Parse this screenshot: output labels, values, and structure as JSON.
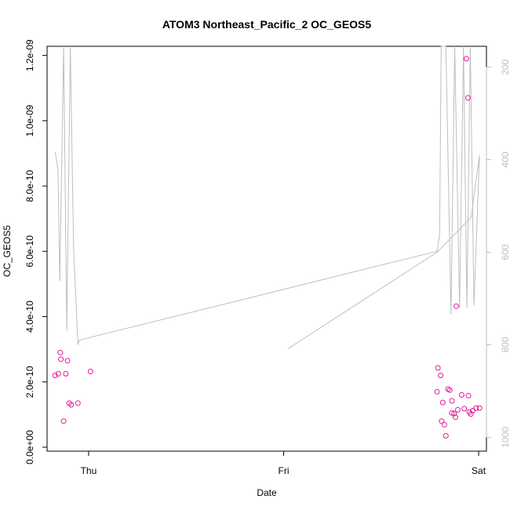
{
  "chart_data": {
    "type": "scatter",
    "title": "ATOM3 Northeast_Pacific_2 OC_GEOS5",
    "xlabel": "Date",
    "ylabel": "OC_GEOS5",
    "x_ticks": [
      {
        "value": 1.0,
        "label": "Thu"
      },
      {
        "value": 2.0,
        "label": "Fri"
      },
      {
        "value": 3.0,
        "label": "Sat"
      }
    ],
    "xlim": [
      0.787,
      3.04
    ],
    "ylim": [
      -1.2e-11,
      1.228e-09
    ],
    "y_ticks": [
      {
        "value": 0.0,
        "label": "0.0e+00"
      },
      {
        "value": 2e-10,
        "label": "2.0e-10"
      },
      {
        "value": 4e-10,
        "label": "4.0e-10"
      },
      {
        "value": 6e-10,
        "label": "6.0e-10"
      },
      {
        "value": 8e-10,
        "label": "8.0e-10"
      },
      {
        "value": 1e-09,
        "label": "1.0e-09"
      },
      {
        "value": 1.2e-09,
        "label": "1.2e-09"
      }
    ],
    "y2lim": [
      1030,
      155
    ],
    "y2_ticks": [
      {
        "value": 200,
        "label": "200"
      },
      {
        "value": 400,
        "label": "400"
      },
      {
        "value": 600,
        "label": "600"
      },
      {
        "value": 800,
        "label": "800"
      },
      {
        "value": 1000,
        "label": "1000"
      }
    ],
    "colors": {
      "points": "#e2189c",
      "pressure_line": "#bebebe",
      "axis": "#000000",
      "axis_right": "#bebebe"
    },
    "series": [
      {
        "x": [
          0.828,
          0.858,
          0.845,
          0.855,
          0.872,
          0.883,
          0.892,
          0.9,
          0.911,
          0.945,
          1.01,
          2.787,
          2.791,
          2.805,
          2.81,
          2.816,
          2.824,
          2.843,
          2.832,
          2.852,
          2.862,
          2.863,
          2.874,
          2.881,
          2.885,
          2.893,
          2.913,
          2.926,
          2.937,
          2.945,
          2.948,
          2.952,
          2.96,
          2.97,
          2.987,
          3.004
        ],
        "y": [
          2.2e-10,
          2.7e-10,
          2.25e-10,
          2.9e-10,
          8e-11,
          2.25e-10,
          2.65e-10,
          1.35e-10,
          1.3e-10,
          1.35e-10,
          2.32e-10,
          1.7e-10,
          2.43e-10,
          2.2e-10,
          8e-11,
          1.37e-10,
          6.9e-11,
          1.78e-10,
          3.5e-11,
          1.75e-10,
          1.05e-10,
          1.42e-10,
          1.03e-10,
          9.2e-11,
          4.32e-10,
          1.15e-10,
          1.6e-10,
          1.18e-10,
          1.19e-09,
          1.07e-09,
          1.58e-10,
          1.08e-10,
          1.02e-10,
          1.12e-10,
          1.2e-10,
          1.2e-10
        ]
      }
    ],
    "pressure_line": {
      "x": [
        0.828,
        0.843,
        0.852,
        0.872,
        0.888,
        0.906,
        0.923,
        0.945,
        0.952,
        2.787,
        2.8,
        2.808,
        2.832,
        2.858,
        2.877,
        2.902,
        2.922,
        2.94,
        2.957,
        2.976,
        3.004,
        2.961,
        2.787,
        2.021
      ],
      "y": [
        383,
        420,
        663,
        140,
        770,
        140,
        593,
        800,
        790,
        598,
        563,
        140,
        140,
        735,
        140,
        720,
        140,
        720,
        140,
        715,
        390,
        525,
        600,
        809
      ]
    }
  }
}
